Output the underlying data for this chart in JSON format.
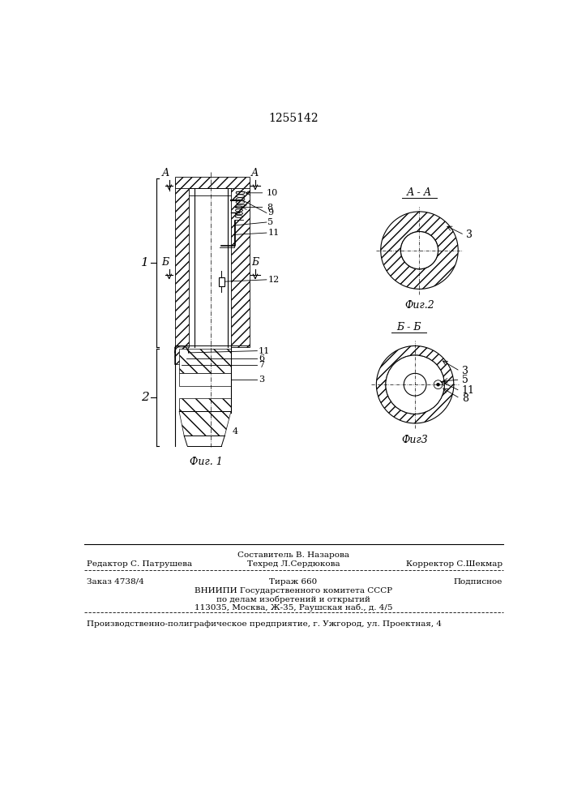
{
  "title": "1255142",
  "bg_color": "#ffffff",
  "line_color": "#000000",
  "fig1_label": "Фиг. 1",
  "fig2_label": "Фиг.2",
  "fig3_label": "Фиг3",
  "section_aa": "А - А",
  "section_bb": "Б - Б",
  "footer_line1": "Составитель В. Назарова",
  "footer_line2_left": "Редактор С. Патрушева",
  "footer_line2_mid": "Техред Л.Сердюкова",
  "footer_line2_right": "Корректор С.Шекмар",
  "footer_line3_left": "Заказ 4738/4",
  "footer_line3_mid": "Тираж 660",
  "footer_line3_right": "Подписное",
  "footer_line4": "ВНИИПИ Государственного комитета СССР",
  "footer_line5": "по делам изобретений и открытий",
  "footer_line6": "113035, Москва, Ж-35, Раушская наб., д. 4/5",
  "footer_line7": "Производственно-полиграфическое предприятие, г. Ужгород, ул. Проектная, 4"
}
